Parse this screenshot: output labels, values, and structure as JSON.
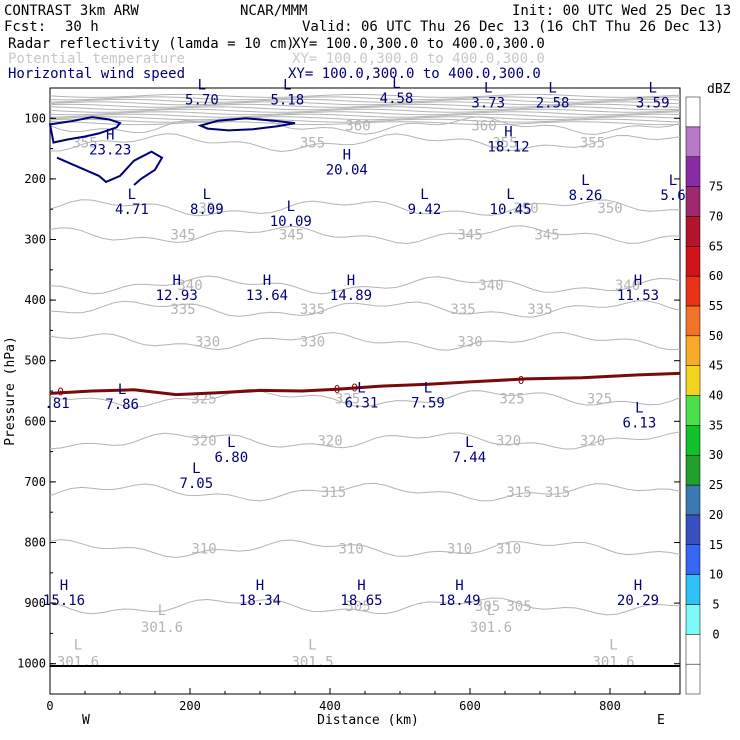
{
  "header": {
    "model_line": "CONTRAST  3km ARW",
    "center": "NCAR/MMM",
    "init": "Init: 00 UTC Wed 25 Dec 13",
    "fcst_label": "Fcst:",
    "fcst_value": "30 h",
    "valid": "Valid: 06 UTC Thu 26 Dec 13 (16 ChT Thu 26 Dec 13)",
    "fields": [
      {
        "name": "Radar reflectivity (lamda = 10 cm)",
        "xy": "XY= 100.0,300.0 to 400.0,300.0",
        "color": "#000000"
      },
      {
        "name": "Potential temperature",
        "xy": "XY= 100.0,300.0 to 400.0,300.0",
        "color": "#c8c8c8"
      },
      {
        "name": "Horizontal wind speed",
        "xy": "XY= 100.0,300.0 to 400.0,300.0",
        "color": "#00007a"
      }
    ]
  },
  "chart_data": {
    "type": "cross-section contour",
    "xlabel": "Distance (km)",
    "ylabel": "Pressure (hPa)",
    "xlim": [
      0,
      900
    ],
    "ylim": [
      1050,
      50
    ],
    "x_ticks": [
      0,
      200,
      400,
      600,
      800
    ],
    "y_ticks": [
      100,
      200,
      300,
      400,
      500,
      600,
      700,
      800,
      900,
      1000
    ],
    "x_end_labels": {
      "left": "W",
      "right": "E"
    },
    "theta_contours": [
      {
        "value": 360,
        "p": 112,
        "labels": [
          440,
          620
        ]
      },
      {
        "value": 355,
        "p": 140,
        "labels": [
          50,
          375,
          650,
          775
        ]
      },
      {
        "value": 350,
        "p": 248,
        "labels": [
          230,
          680,
          800
        ]
      },
      {
        "value": 345,
        "p": 292,
        "labels": [
          190,
          345,
          600,
          710
        ]
      },
      {
        "value": 340,
        "p": 375,
        "labels": [
          200,
          630,
          825
        ]
      },
      {
        "value": 335,
        "p": 415,
        "labels": [
          190,
          375,
          590,
          700
        ]
      },
      {
        "value": 330,
        "p": 468,
        "labels": [
          225,
          375,
          600
        ]
      },
      {
        "value": 325,
        "p": 562,
        "labels": [
          220,
          425,
          660,
          785
        ]
      },
      {
        "value": 320,
        "p": 632,
        "labels": [
          220,
          400,
          655,
          775
        ]
      },
      {
        "value": 315,
        "p": 717,
        "labels": [
          405,
          670,
          725
        ]
      },
      {
        "value": 310,
        "p": 810,
        "labels": [
          220,
          430,
          585,
          655
        ]
      },
      {
        "value": 305,
        "p": 905,
        "labels": [
          440,
          625,
          670
        ]
      }
    ],
    "theta_upper_band": {
      "p_top": 63,
      "p_bottom": 108,
      "lines": 12
    },
    "theta_lows": [
      {
        "x": 160,
        "p": 943,
        "label": "L",
        "value": "301.6"
      },
      {
        "x": 40,
        "p": 1000,
        "label": "L",
        "value": "301.6"
      },
      {
        "x": 375,
        "p": 1000,
        "label": "L",
        "value": "301.5"
      },
      {
        "x": 630,
        "p": 943,
        "label": "L",
        "value": "301.6"
      },
      {
        "x": 805,
        "p": 1000,
        "label": "L",
        "value": "301.6"
      }
    ],
    "zero_dbz_line": {
      "color": "#7a0a0a",
      "points": [
        [
          0,
          554
        ],
        [
          60,
          550
        ],
        [
          120,
          548
        ],
        [
          180,
          556
        ],
        [
          240,
          553
        ],
        [
          300,
          549
        ],
        [
          360,
          550
        ],
        [
          410,
          547
        ],
        [
          470,
          542
        ],
        [
          540,
          539
        ],
        [
          600,
          535
        ],
        [
          680,
          530
        ],
        [
          760,
          528
        ],
        [
          830,
          524
        ],
        [
          900,
          521
        ]
      ],
      "labels": [
        [
          15,
          551
        ],
        [
          410,
          547
        ],
        [
          435,
          544
        ],
        [
          673,
          532
        ]
      ]
    },
    "wind_extrema": [
      {
        "label": "L",
        "value": "5.70",
        "x": 217,
        "p": 67
      },
      {
        "label": "L",
        "value": "5.18",
        "x": 339,
        "p": 67
      },
      {
        "label": "L",
        "value": "4.58",
        "x": 495,
        "p": 65
      },
      {
        "label": "L",
        "value": "3.73",
        "x": 626,
        "p": 72
      },
      {
        "label": "L",
        "value": "2.58",
        "x": 718,
        "p": 72
      },
      {
        "label": "L",
        "value": "3.59",
        "x": 861,
        "p": 72
      },
      {
        "label": "H",
        "value": "23.23",
        "x": 86,
        "p": 150
      },
      {
        "label": "H",
        "value": "18.12",
        "x": 655,
        "p": 145
      },
      {
        "label": "H",
        "value": "20.04",
        "x": 424,
        "p": 183
      },
      {
        "label": "L",
        "value": "4.71",
        "x": 117,
        "p": 248
      },
      {
        "label": "L",
        "value": "8.09",
        "x": 224,
        "p": 248
      },
      {
        "label": "L",
        "value": "10.09",
        "x": 344,
        "p": 268
      },
      {
        "label": "L",
        "value": "9.42",
        "x": 535,
        "p": 248
      },
      {
        "label": "L",
        "value": "10.45",
        "x": 658,
        "p": 248
      },
      {
        "label": "L",
        "value": "8.26",
        "x": 765,
        "p": 225
      },
      {
        "label": "L",
        "value": "5.6",
        "x": 890,
        "p": 225
      },
      {
        "label": "H",
        "value": "12.93",
        "x": 181,
        "p": 390
      },
      {
        "label": "H",
        "value": "13.64",
        "x": 310,
        "p": 390
      },
      {
        "label": "H",
        "value": "14.89",
        "x": 430,
        "p": 390
      },
      {
        "label": "H",
        "value": "11.53",
        "x": 840,
        "p": 390
      },
      {
        "label": ".81",
        "value": "",
        "x": 10,
        "p": 570,
        "no_letter": true
      },
      {
        "label": "L",
        "value": "7.86",
        "x": 103,
        "p": 570
      },
      {
        "label": "L",
        "value": "6.31",
        "x": 445,
        "p": 567
      },
      {
        "label": "L",
        "value": "7.59",
        "x": 540,
        "p": 567
      },
      {
        "label": "L",
        "value": "6.13",
        "x": 842,
        "p": 600
      },
      {
        "label": "L",
        "value": "6.80",
        "x": 259,
        "p": 657
      },
      {
        "label": "L",
        "value": "7.44",
        "x": 599,
        "p": 657
      },
      {
        "label": "L",
        "value": "7.05",
        "x": 209,
        "p": 700
      },
      {
        "label": "H",
        "value": "15.16",
        "x": 20,
        "p": 893
      },
      {
        "label": "H",
        "value": "18.34",
        "x": 300,
        "p": 893
      },
      {
        "label": "H",
        "value": "18.65",
        "x": 445,
        "p": 893
      },
      {
        "label": "H",
        "value": "18.49",
        "x": 585,
        "p": 893
      },
      {
        "label": "H",
        "value": "20.29",
        "x": 840,
        "p": 893
      }
    ],
    "wind_contour_shapes": [
      {
        "name": "jet-core-left",
        "points": [
          [
            0,
            110
          ],
          [
            30,
            105
          ],
          [
            60,
            98
          ],
          [
            85,
            102
          ],
          [
            100,
            108
          ],
          [
            95,
            115
          ],
          [
            70,
            125
          ],
          [
            50,
            130
          ],
          [
            25,
            135
          ],
          [
            5,
            140
          ]
        ]
      },
      {
        "name": "jet-core-center",
        "points": [
          [
            215,
            112
          ],
          [
            240,
            104
          ],
          [
            280,
            100
          ],
          [
            320,
            104
          ],
          [
            350,
            108
          ],
          [
            325,
            113
          ],
          [
            290,
            118
          ],
          [
            255,
            120
          ],
          [
            225,
            117
          ]
        ]
      }
    ],
    "wind_contour_open": [
      {
        "name": "jet-lobe-left",
        "points": [
          [
            10,
            165
          ],
          [
            40,
            180
          ],
          [
            70,
            195
          ],
          [
            80,
            205
          ],
          [
            100,
            195
          ],
          [
            120,
            170
          ],
          [
            145,
            155
          ],
          [
            160,
            165
          ],
          [
            150,
            185
          ],
          [
            130,
            200
          ],
          [
            120,
            210
          ]
        ]
      }
    ],
    "colorbar": {
      "unit": "dBZ",
      "levels": [
        -5,
        0,
        5,
        10,
        15,
        20,
        25,
        30,
        35,
        40,
        45,
        50,
        55,
        60,
        65,
        70,
        75,
        80
      ],
      "tick_labels": [
        "0",
        "5",
        "10",
        "15",
        "20",
        "25",
        "30",
        "35",
        "40",
        "45",
        "50",
        "55",
        "60",
        "65",
        "70",
        "75"
      ],
      "colors": [
        "#ffffff",
        "#ffffff",
        "#7df9fa",
        "#2ec1f5",
        "#3566f4",
        "#3a50c0",
        "#3a7ab0",
        "#21a02b",
        "#12c02a",
        "#4ce04a",
        "#f3d41e",
        "#f7ab28",
        "#f17327",
        "#e93216",
        "#d2141a",
        "#b2142d",
        "#a0286e",
        "#8a2ca6",
        "#b77ac8",
        "#ffffff"
      ]
    }
  }
}
